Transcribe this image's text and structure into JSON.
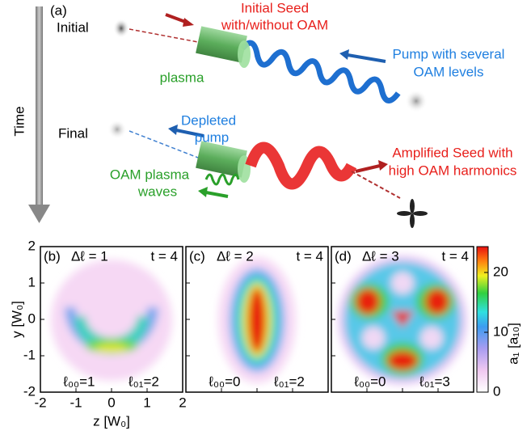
{
  "panel_a": {
    "label": "(a)",
    "initial": "Initial",
    "final": "Final",
    "time": "Time",
    "seed": [
      "Initial Seed",
      "with/without OAM"
    ],
    "pump": [
      "Pump with several",
      "OAM levels"
    ],
    "plasma": "plasma",
    "depleted": [
      "Depleted",
      "pump"
    ],
    "waves": [
      "OAM plasma",
      "waves"
    ],
    "amplified": [
      "Amplified Seed with",
      "high OAM harmonics"
    ]
  },
  "panels": [
    {
      "label": "(b)",
      "delta": "Δℓ = 1",
      "time": "t = 4",
      "l00": "ℓ₀₀=1",
      "l01": "ℓ₀₁=2"
    },
    {
      "label": "(c)",
      "delta": "Δℓ = 2",
      "time": "t = 4",
      "l00": "ℓ₀₀=0",
      "l01": "ℓ₀₁=2"
    },
    {
      "label": "(d)",
      "delta": "Δℓ = 3",
      "time": "t = 4",
      "l00": "ℓ₀₀=0",
      "l01": "ℓ₀₁=3"
    }
  ],
  "y_axis": {
    "label": "y [W₀]",
    "ticks": [
      "-2",
      "-1",
      "0",
      "1",
      "2"
    ]
  },
  "x_axis": {
    "label": "z [W₀]",
    "ticks": [
      "-2",
      "-1",
      "0",
      "1",
      "2"
    ]
  },
  "colorbar": {
    "label": "a₁ [a₁₀]",
    "ticks": [
      "0",
      "10",
      "20"
    ]
  }
}
